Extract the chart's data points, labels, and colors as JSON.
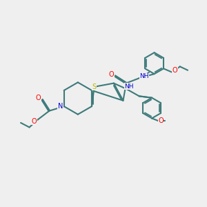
{
  "bg_color": "#efefef",
  "bond_color": "#3d7a7a",
  "bond_width": 1.5,
  "highlight_colors": {
    "O": "#ff0000",
    "N": "#0000cc",
    "S": "#b8b800",
    "C_label": "#3d7a7a"
  },
  "figsize": [
    3.0,
    3.0
  ],
  "dpi": 100
}
